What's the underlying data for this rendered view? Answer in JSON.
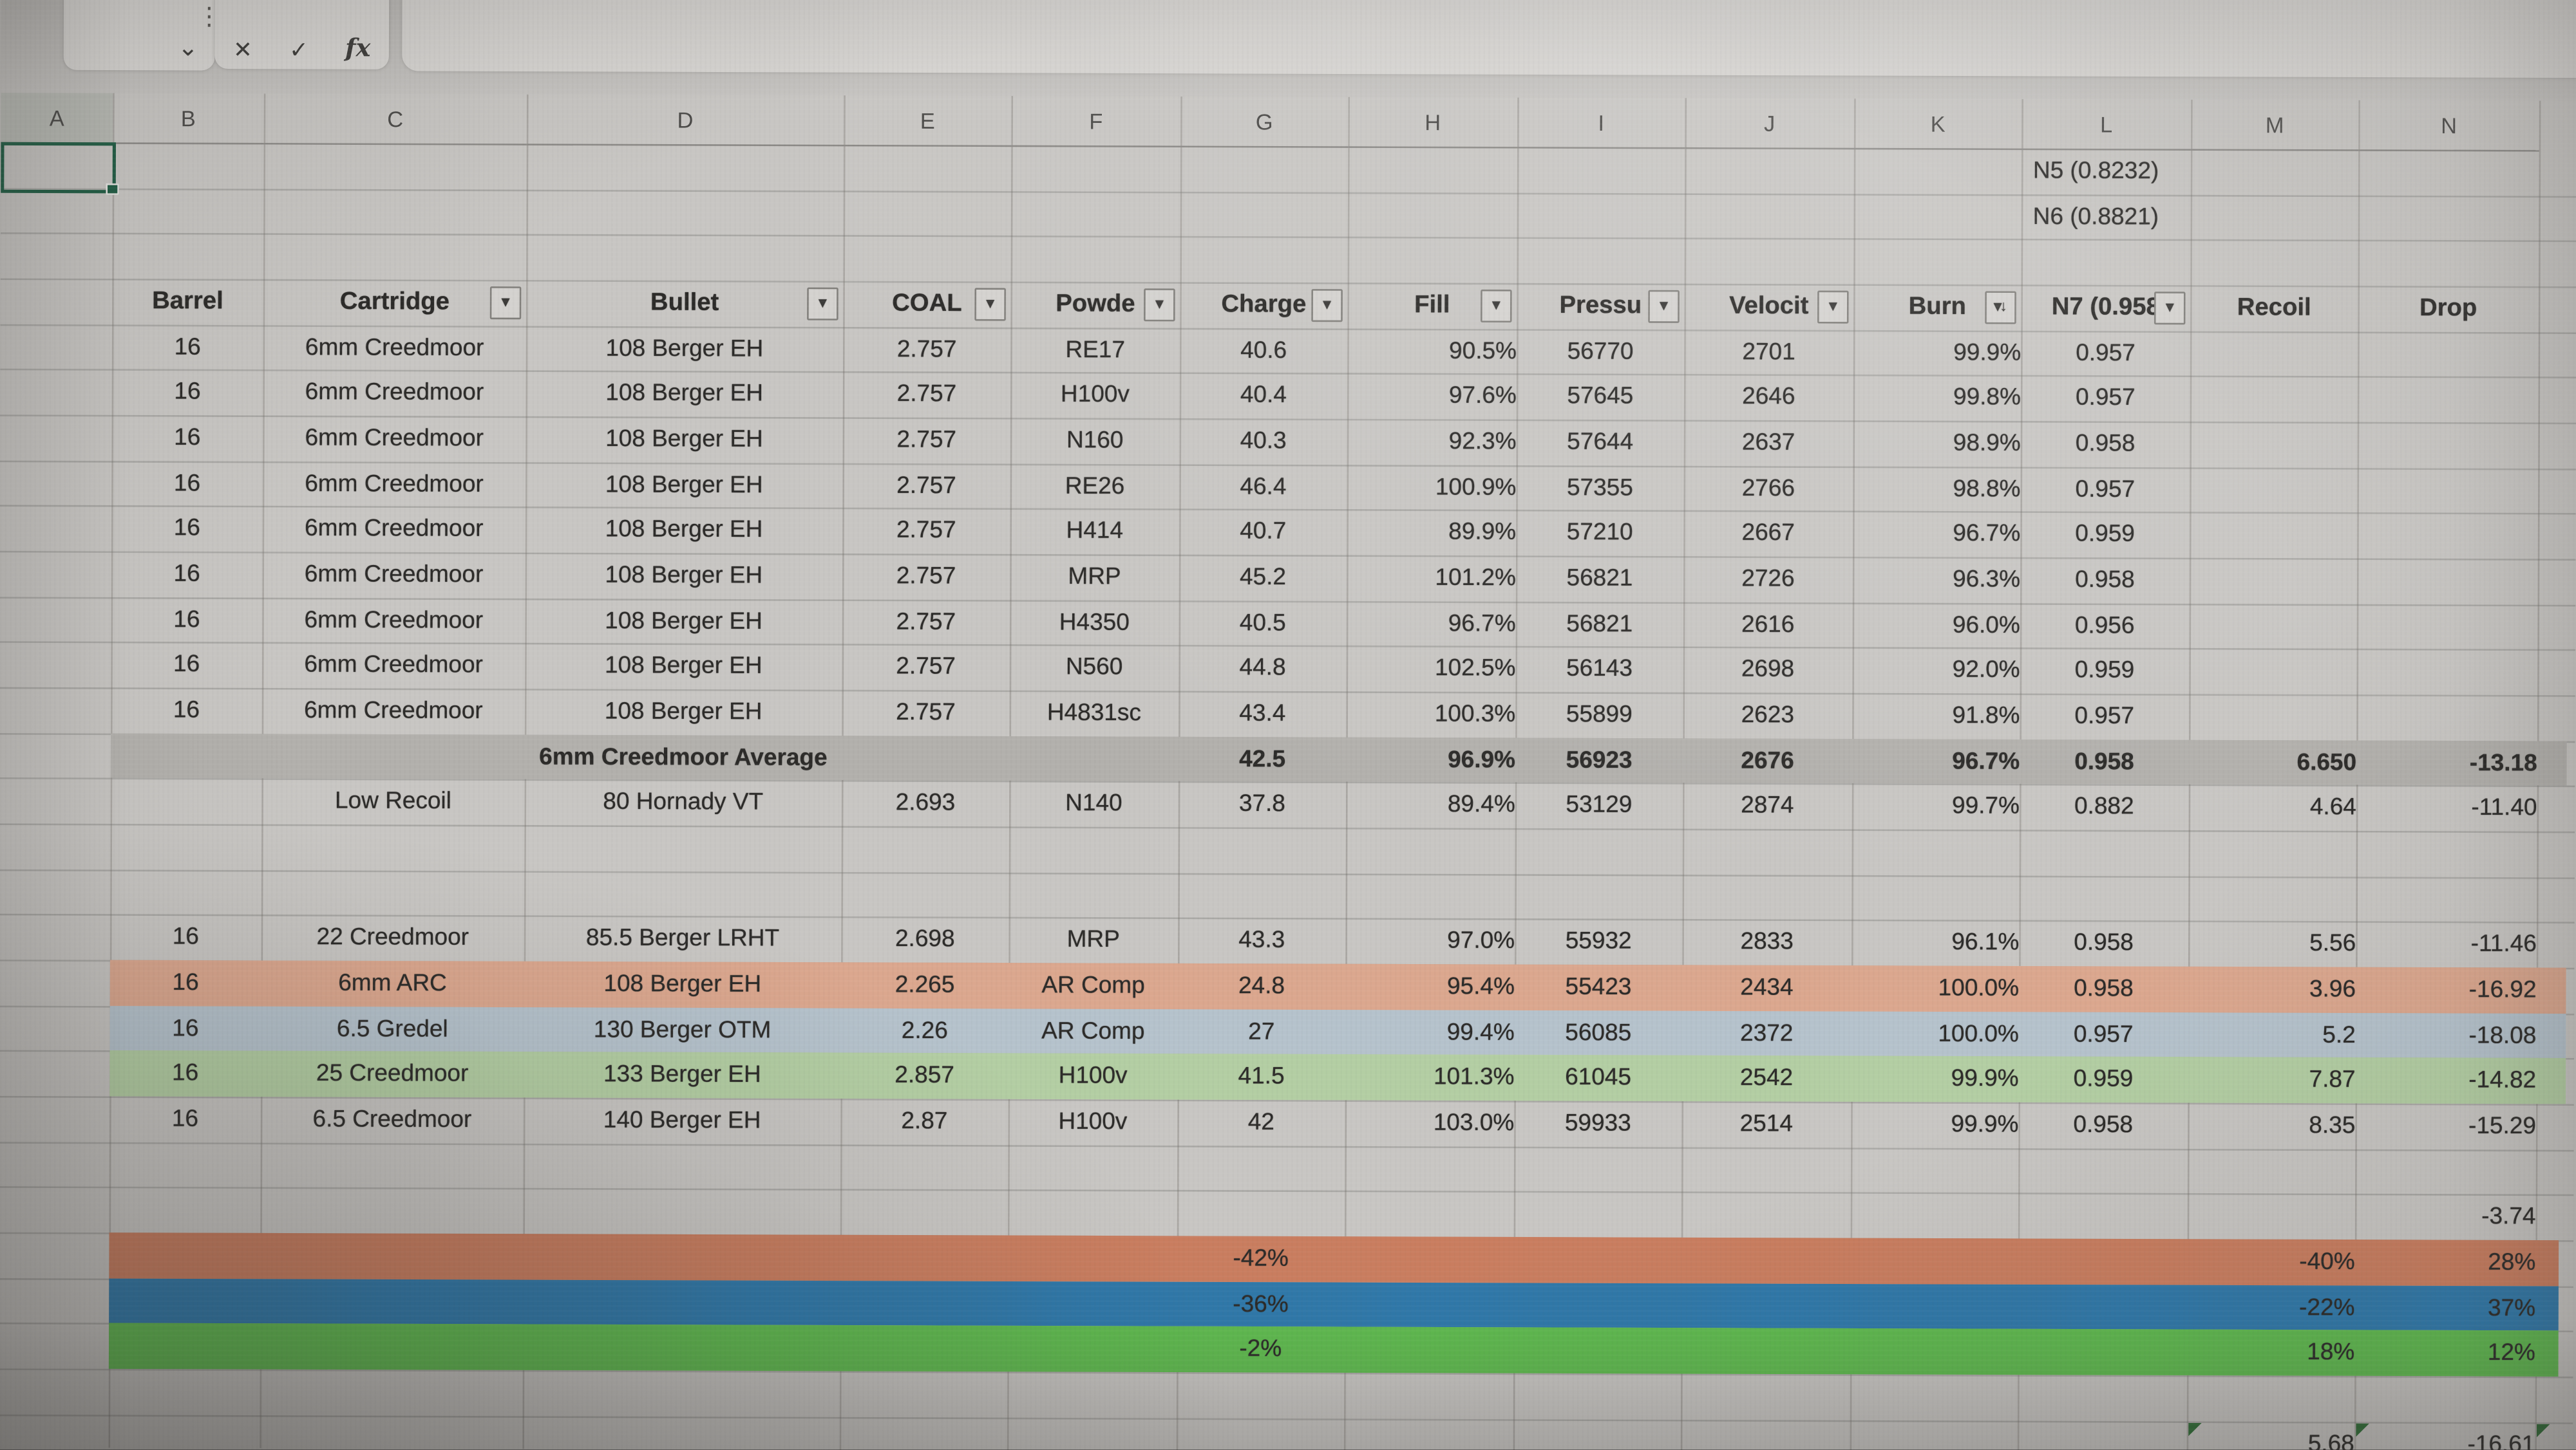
{
  "formula_bar": {
    "chevron": "⌄",
    "dots": "⋮",
    "cancel": "✕",
    "confirm": "✓",
    "fx": "fx"
  },
  "colors": {
    "avg_row": "#b2b0ac",
    "salmon_row": "#dba78e",
    "blue_row": "#b5c2cc",
    "green_row": "#b3cea3",
    "bar_salmon": "#c97d5f",
    "bar_blue": "#2f78a9",
    "bar_green": "#5fba4f",
    "selection": "#1f5c43",
    "flag": "#2e6b35"
  },
  "sheet": {
    "column_letters": [
      "A",
      "B",
      "C",
      "D",
      "E",
      "F",
      "G",
      "H",
      "I",
      "J",
      "K",
      "L",
      "M",
      "N"
    ],
    "header": [
      {
        "c": "B",
        "label": "Barrel",
        "btn": "none"
      },
      {
        "c": "C",
        "label": "Cartridge",
        "btn": "filter"
      },
      {
        "c": "D",
        "label": "Bullet",
        "btn": "filter"
      },
      {
        "c": "E",
        "label": "COAL",
        "btn": "filter"
      },
      {
        "c": "F",
        "label": "Powde",
        "btn": "filter"
      },
      {
        "c": "G",
        "label": "Charge",
        "btn": "filter"
      },
      {
        "c": "H",
        "label": "Fill",
        "btn": "filter"
      },
      {
        "c": "I",
        "label": "Pressu",
        "btn": "filter"
      },
      {
        "c": "J",
        "label": "Velocit",
        "btn": "filter"
      },
      {
        "c": "K",
        "label": "Burn",
        "btn": "sort"
      },
      {
        "c": "L",
        "label": "N7 (0.958",
        "btn": "filter"
      },
      {
        "c": "M",
        "label": "Recoil",
        "btn": "none"
      },
      {
        "c": "N",
        "label": "Drop",
        "btn": "none"
      }
    ],
    "rows": [
      {
        "n": 1,
        "cells": [
          {
            "c": "L",
            "t": "N5 (0.8232)",
            "a": "l"
          }
        ]
      },
      {
        "n": 2,
        "cells": [
          {
            "c": "L",
            "t": "N6 (0.8821)",
            "a": "l"
          }
        ]
      },
      {
        "n": 3,
        "cells": []
      },
      {
        "n": 5,
        "cells": [
          {
            "c": "B",
            "t": "16"
          },
          {
            "c": "C",
            "t": "6mm Creedmoor"
          },
          {
            "c": "D",
            "t": "108 Berger EH"
          },
          {
            "c": "E",
            "t": "2.757"
          },
          {
            "c": "F",
            "t": "RE17"
          },
          {
            "c": "G",
            "t": "40.6"
          },
          {
            "c": "H",
            "t": "90.5%"
          },
          {
            "c": "I",
            "t": "56770"
          },
          {
            "c": "J",
            "t": "2701"
          },
          {
            "c": "K",
            "t": "99.9%"
          },
          {
            "c": "L",
            "t": "0.957"
          }
        ]
      },
      {
        "n": 6,
        "cells": [
          {
            "c": "B",
            "t": "16"
          },
          {
            "c": "C",
            "t": "6mm Creedmoor"
          },
          {
            "c": "D",
            "t": "108 Berger EH"
          },
          {
            "c": "E",
            "t": "2.757"
          },
          {
            "c": "F",
            "t": "H100v"
          },
          {
            "c": "G",
            "t": "40.4"
          },
          {
            "c": "H",
            "t": "97.6%"
          },
          {
            "c": "I",
            "t": "57645"
          },
          {
            "c": "J",
            "t": "2646"
          },
          {
            "c": "K",
            "t": "99.8%"
          },
          {
            "c": "L",
            "t": "0.957"
          }
        ]
      },
      {
        "n": 7,
        "cells": [
          {
            "c": "B",
            "t": "16"
          },
          {
            "c": "C",
            "t": "6mm Creedmoor"
          },
          {
            "c": "D",
            "t": "108 Berger EH"
          },
          {
            "c": "E",
            "t": "2.757"
          },
          {
            "c": "F",
            "t": "N160"
          },
          {
            "c": "G",
            "t": "40.3"
          },
          {
            "c": "H",
            "t": "92.3%"
          },
          {
            "c": "I",
            "t": "57644"
          },
          {
            "c": "J",
            "t": "2637"
          },
          {
            "c": "K",
            "t": "98.9%"
          },
          {
            "c": "L",
            "t": "0.958"
          }
        ]
      },
      {
        "n": 8,
        "cells": [
          {
            "c": "B",
            "t": "16"
          },
          {
            "c": "C",
            "t": "6mm Creedmoor"
          },
          {
            "c": "D",
            "t": "108 Berger EH"
          },
          {
            "c": "E",
            "t": "2.757"
          },
          {
            "c": "F",
            "t": "RE26"
          },
          {
            "c": "G",
            "t": "46.4"
          },
          {
            "c": "H",
            "t": "100.9%"
          },
          {
            "c": "I",
            "t": "57355"
          },
          {
            "c": "J",
            "t": "2766"
          },
          {
            "c": "K",
            "t": "98.8%"
          },
          {
            "c": "L",
            "t": "0.957"
          }
        ]
      },
      {
        "n": 9,
        "cells": [
          {
            "c": "B",
            "t": "16"
          },
          {
            "c": "C",
            "t": "6mm Creedmoor"
          },
          {
            "c": "D",
            "t": "108 Berger EH"
          },
          {
            "c": "E",
            "t": "2.757"
          },
          {
            "c": "F",
            "t": "H414"
          },
          {
            "c": "G",
            "t": "40.7"
          },
          {
            "c": "H",
            "t": "89.9%"
          },
          {
            "c": "I",
            "t": "57210"
          },
          {
            "c": "J",
            "t": "2667"
          },
          {
            "c": "K",
            "t": "96.7%"
          },
          {
            "c": "L",
            "t": "0.959"
          }
        ]
      },
      {
        "n": 10,
        "cells": [
          {
            "c": "B",
            "t": "16"
          },
          {
            "c": "C",
            "t": "6mm Creedmoor"
          },
          {
            "c": "D",
            "t": "108 Berger EH"
          },
          {
            "c": "E",
            "t": "2.757"
          },
          {
            "c": "F",
            "t": "MRP"
          },
          {
            "c": "G",
            "t": "45.2"
          },
          {
            "c": "H",
            "t": "101.2%"
          },
          {
            "c": "I",
            "t": "56821"
          },
          {
            "c": "J",
            "t": "2726"
          },
          {
            "c": "K",
            "t": "96.3%"
          },
          {
            "c": "L",
            "t": "0.958"
          }
        ]
      },
      {
        "n": 11,
        "cells": [
          {
            "c": "B",
            "t": "16"
          },
          {
            "c": "C",
            "t": "6mm Creedmoor"
          },
          {
            "c": "D",
            "t": "108 Berger EH"
          },
          {
            "c": "E",
            "t": "2.757"
          },
          {
            "c": "F",
            "t": "H4350"
          },
          {
            "c": "G",
            "t": "40.5"
          },
          {
            "c": "H",
            "t": "96.7%"
          },
          {
            "c": "I",
            "t": "56821"
          },
          {
            "c": "J",
            "t": "2616"
          },
          {
            "c": "K",
            "t": "96.0%"
          },
          {
            "c": "L",
            "t": "0.956"
          }
        ]
      },
      {
        "n": 12,
        "cells": [
          {
            "c": "B",
            "t": "16"
          },
          {
            "c": "C",
            "t": "6mm Creedmoor"
          },
          {
            "c": "D",
            "t": "108 Berger EH"
          },
          {
            "c": "E",
            "t": "2.757"
          },
          {
            "c": "F",
            "t": "N560"
          },
          {
            "c": "G",
            "t": "44.8"
          },
          {
            "c": "H",
            "t": "102.5%"
          },
          {
            "c": "I",
            "t": "56143"
          },
          {
            "c": "J",
            "t": "2698"
          },
          {
            "c": "K",
            "t": "92.0%"
          },
          {
            "c": "L",
            "t": "0.959"
          }
        ]
      },
      {
        "n": 13,
        "cells": [
          {
            "c": "B",
            "t": "16"
          },
          {
            "c": "C",
            "t": "6mm Creedmoor"
          },
          {
            "c": "D",
            "t": "108 Berger EH"
          },
          {
            "c": "E",
            "t": "2.757"
          },
          {
            "c": "F",
            "t": "H4831sc"
          },
          {
            "c": "G",
            "t": "43.4"
          },
          {
            "c": "H",
            "t": "100.3%"
          },
          {
            "c": "I",
            "t": "55899"
          },
          {
            "c": "J",
            "t": "2623"
          },
          {
            "c": "K",
            "t": "91.8%"
          },
          {
            "c": "L",
            "t": "0.957"
          }
        ]
      },
      {
        "n": 14,
        "bg": "avg_row",
        "bold": true,
        "cells": [
          {
            "c": "D",
            "t": "6mm Creedmoor Average",
            "a": "ovf"
          },
          {
            "c": "G",
            "t": "42.5"
          },
          {
            "c": "H",
            "t": "96.9%"
          },
          {
            "c": "I",
            "t": "56923"
          },
          {
            "c": "J",
            "t": "2676"
          },
          {
            "c": "K",
            "t": "96.7%"
          },
          {
            "c": "L",
            "t": "0.958"
          },
          {
            "c": "M",
            "t": "6.650"
          },
          {
            "c": "N",
            "t": "-13.18"
          }
        ]
      },
      {
        "n": 15,
        "cells": [
          {
            "c": "C",
            "t": "Low Recoil"
          },
          {
            "c": "D",
            "t": "80 Hornady VT"
          },
          {
            "c": "E",
            "t": "2.693"
          },
          {
            "c": "F",
            "t": "N140"
          },
          {
            "c": "G",
            "t": "37.8"
          },
          {
            "c": "H",
            "t": "89.4%"
          },
          {
            "c": "I",
            "t": "53129"
          },
          {
            "c": "J",
            "t": "2874"
          },
          {
            "c": "K",
            "t": "99.7%"
          },
          {
            "c": "L",
            "t": "0.882"
          },
          {
            "c": "M",
            "t": "4.64"
          },
          {
            "c": "N",
            "t": "-11.40"
          }
        ]
      },
      {
        "n": 16,
        "cells": []
      },
      {
        "n": 17,
        "cells": []
      },
      {
        "n": 18,
        "cells": [
          {
            "c": "B",
            "t": "16"
          },
          {
            "c": "C",
            "t": "22 Creedmoor"
          },
          {
            "c": "D",
            "t": "85.5 Berger LRHT"
          },
          {
            "c": "E",
            "t": "2.698"
          },
          {
            "c": "F",
            "t": "MRP"
          },
          {
            "c": "G",
            "t": "43.3"
          },
          {
            "c": "H",
            "t": "97.0%"
          },
          {
            "c": "I",
            "t": "55932"
          },
          {
            "c": "J",
            "t": "2833"
          },
          {
            "c": "K",
            "t": "96.1%"
          },
          {
            "c": "L",
            "t": "0.958"
          },
          {
            "c": "M",
            "t": "5.56"
          },
          {
            "c": "N",
            "t": "-11.46"
          }
        ]
      },
      {
        "n": 19,
        "bg": "salmon_row",
        "cells": [
          {
            "c": "B",
            "t": "16"
          },
          {
            "c": "C",
            "t": "6mm ARC"
          },
          {
            "c": "D",
            "t": "108 Berger EH"
          },
          {
            "c": "E",
            "t": "2.265"
          },
          {
            "c": "F",
            "t": "AR Comp"
          },
          {
            "c": "G",
            "t": "24.8"
          },
          {
            "c": "H",
            "t": "95.4%"
          },
          {
            "c": "I",
            "t": "55423"
          },
          {
            "c": "J",
            "t": "2434"
          },
          {
            "c": "K",
            "t": "100.0%"
          },
          {
            "c": "L",
            "t": "0.958"
          },
          {
            "c": "M",
            "t": "3.96"
          },
          {
            "c": "N",
            "t": "-16.92"
          }
        ]
      },
      {
        "n": 20,
        "bg": "blue_row",
        "cells": [
          {
            "c": "B",
            "t": "16"
          },
          {
            "c": "C",
            "t": "6.5 Gredel"
          },
          {
            "c": "D",
            "t": "130 Berger OTM"
          },
          {
            "c": "E",
            "t": "2.26"
          },
          {
            "c": "F",
            "t": "AR Comp"
          },
          {
            "c": "G",
            "t": "27"
          },
          {
            "c": "H",
            "t": "99.4%"
          },
          {
            "c": "I",
            "t": "56085"
          },
          {
            "c": "J",
            "t": "2372"
          },
          {
            "c": "K",
            "t": "100.0%"
          },
          {
            "c": "L",
            "t": "0.957"
          },
          {
            "c": "M",
            "t": "5.2"
          },
          {
            "c": "N",
            "t": "-18.08"
          }
        ]
      },
      {
        "n": 21,
        "bg": "green_row",
        "cells": [
          {
            "c": "B",
            "t": "16"
          },
          {
            "c": "C",
            "t": "25 Creedmoor"
          },
          {
            "c": "D",
            "t": "133 Berger EH"
          },
          {
            "c": "E",
            "t": "2.857"
          },
          {
            "c": "F",
            "t": "H100v"
          },
          {
            "c": "G",
            "t": "41.5"
          },
          {
            "c": "H",
            "t": "101.3%"
          },
          {
            "c": "I",
            "t": "61045"
          },
          {
            "c": "J",
            "t": "2542"
          },
          {
            "c": "K",
            "t": "99.9%"
          },
          {
            "c": "L",
            "t": "0.959"
          },
          {
            "c": "M",
            "t": "7.87"
          },
          {
            "c": "N",
            "t": "-14.82"
          }
        ]
      },
      {
        "n": 22,
        "cells": [
          {
            "c": "B",
            "t": "16"
          },
          {
            "c": "C",
            "t": "6.5 Creedmoor"
          },
          {
            "c": "D",
            "t": "140 Berger EH"
          },
          {
            "c": "E",
            "t": "2.87"
          },
          {
            "c": "F",
            "t": "H100v"
          },
          {
            "c": "G",
            "t": "42"
          },
          {
            "c": "H",
            "t": "103.0%"
          },
          {
            "c": "I",
            "t": "59933"
          },
          {
            "c": "J",
            "t": "2514"
          },
          {
            "c": "K",
            "t": "99.9%"
          },
          {
            "c": "L",
            "t": "0.958"
          },
          {
            "c": "M",
            "t": "8.35"
          },
          {
            "c": "N",
            "t": "-15.29"
          }
        ]
      },
      {
        "n": 23,
        "cells": []
      },
      {
        "n": 24,
        "cells": [
          {
            "c": "N",
            "t": "-3.74"
          }
        ]
      },
      {
        "n": 25,
        "bg": "bar_salmon",
        "cells": [
          {
            "c": "G",
            "t": "-42%"
          },
          {
            "c": "M",
            "t": "-40%"
          },
          {
            "c": "N",
            "t": "28%"
          }
        ]
      },
      {
        "n": 26,
        "bg": "bar_blue",
        "cells": [
          {
            "c": "G",
            "t": "-36%"
          },
          {
            "c": "M",
            "t": "-22%"
          },
          {
            "c": "N",
            "t": "37%"
          }
        ]
      },
      {
        "n": 27,
        "bg": "bar_green",
        "cells": [
          {
            "c": "G",
            "t": "-2%"
          },
          {
            "c": "M",
            "t": "18%"
          },
          {
            "c": "N",
            "t": "12%"
          }
        ]
      },
      {
        "n": 28,
        "cells": []
      },
      {
        "n": 29,
        "flags": [
          "M",
          "N",
          "O"
        ],
        "cells": [
          {
            "c": "M",
            "t": "5.68"
          },
          {
            "c": "N",
            "t": "-16.61"
          }
        ]
      }
    ]
  }
}
